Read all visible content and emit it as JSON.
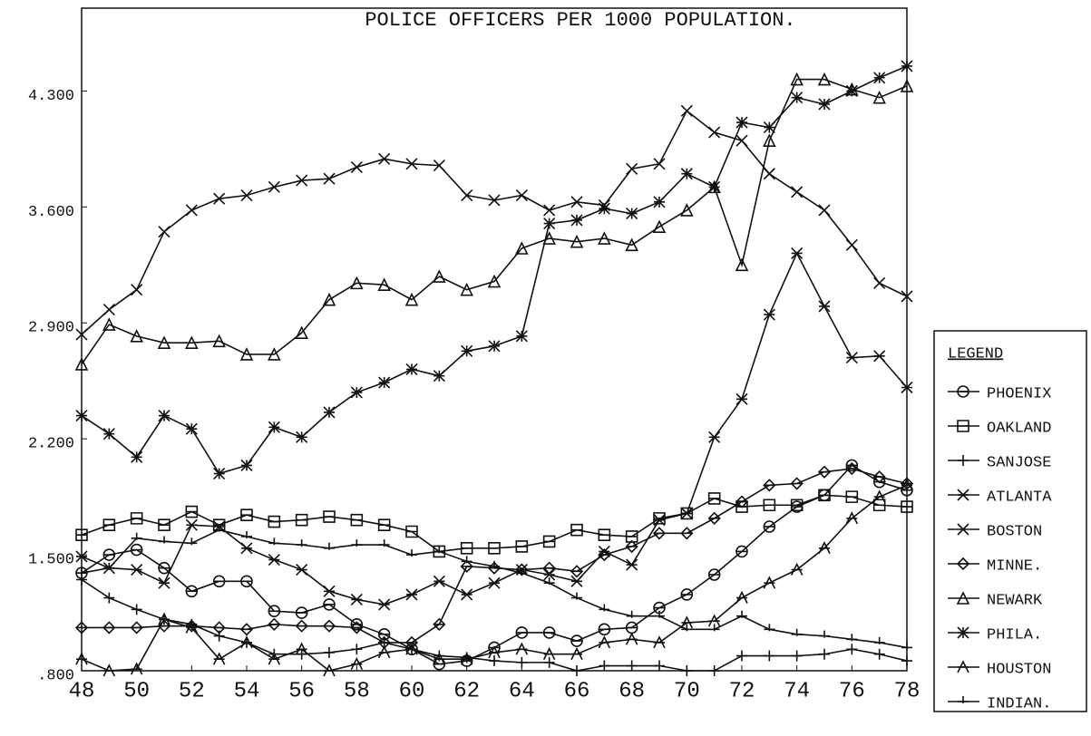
{
  "chart_data": {
    "type": "line",
    "title": "POLICE OFFICERS PER 1000 POPULATION.",
    "x": [
      48,
      49,
      50,
      51,
      52,
      53,
      54,
      55,
      56,
      57,
      58,
      59,
      60,
      61,
      62,
      63,
      64,
      65,
      66,
      67,
      68,
      69,
      70,
      71,
      72,
      73,
      74,
      75,
      76,
      77,
      78
    ],
    "xlim": [
      48,
      78
    ],
    "xticks": [
      48,
      50,
      52,
      54,
      56,
      58,
      60,
      62,
      64,
      66,
      68,
      70,
      72,
      74,
      76,
      78
    ],
    "ylim": [
      0.8,
      4.8
    ],
    "yticks": [
      {
        "value": 0.8,
        "label": ".800"
      },
      {
        "value": 1.5,
        "label": "1.500"
      },
      {
        "value": 2.2,
        "label": "2.200"
      },
      {
        "value": 2.9,
        "label": "2.900"
      },
      {
        "value": 3.6,
        "label": "3.600"
      },
      {
        "value": 4.3,
        "label": "4.300"
      }
    ],
    "legend_title": "LEGEND",
    "legend_position": "right",
    "series": [
      {
        "name": "PHOENIX",
        "color": "#111111",
        "marker": "circle",
        "values": [
          1.39,
          1.5,
          1.53,
          1.42,
          1.28,
          1.34,
          1.34,
          1.16,
          1.15,
          1.2,
          1.08,
          1.02,
          0.93,
          0.84,
          0.86,
          0.94,
          1.03,
          1.03,
          0.98,
          1.05,
          1.06,
          1.18,
          1.26,
          1.38,
          1.52,
          1.67,
          1.79,
          1.86,
          2.04,
          1.94,
          1.89
        ]
      },
      {
        "name": "OAKLAND",
        "color": "#111111",
        "marker": "square",
        "values": [
          1.62,
          1.68,
          1.72,
          1.68,
          1.76,
          1.68,
          1.74,
          1.7,
          1.71,
          1.73,
          1.71,
          1.68,
          1.64,
          1.52,
          1.54,
          1.54,
          1.55,
          1.58,
          1.65,
          1.62,
          1.61,
          1.72,
          1.75,
          1.84,
          1.79,
          1.8,
          1.8,
          1.86,
          1.85,
          1.8,
          1.79
        ]
      },
      {
        "name": "SANJOSE",
        "color": "#111111",
        "marker": "plus",
        "values": [
          1.35,
          1.24,
          1.17,
          1.11,
          1.08,
          1.01,
          0.97,
          0.9,
          0.9,
          0.91,
          0.93,
          0.97,
          0.93,
          0.89,
          0.88,
          0.86,
          0.85,
          0.85,
          0.8,
          0.83,
          0.83,
          0.83,
          0.8,
          0.8,
          0.89,
          0.89,
          0.89,
          0.9,
          0.93,
          0.9,
          0.86
        ]
      },
      {
        "name": "ATLANTA",
        "color": "#111111",
        "marker": "xbar",
        "values": [
          1.49,
          1.42,
          1.41,
          1.33,
          1.68,
          1.67,
          1.54,
          1.47,
          1.41,
          1.28,
          1.23,
          1.2,
          1.26,
          1.34,
          1.26,
          1.33,
          1.41,
          1.38,
          1.34,
          1.52,
          1.44,
          1.71,
          1.75,
          2.21,
          2.44,
          2.95,
          3.32,
          3.0,
          2.69,
          2.7,
          2.51
        ]
      },
      {
        "name": "BOSTON",
        "color": "#111111",
        "marker": "x",
        "values": [
          2.83,
          2.98,
          3.1,
          3.45,
          3.58,
          3.65,
          3.67,
          3.72,
          3.76,
          3.77,
          3.84,
          3.89,
          3.86,
          3.85,
          3.67,
          3.64,
          3.67,
          3.58,
          3.63,
          3.61,
          3.83,
          3.86,
          4.18,
          4.05,
          4.0,
          3.8,
          3.69,
          3.58,
          3.37,
          3.14,
          3.06
        ]
      },
      {
        "name": "MINNE.",
        "color": "#111111",
        "marker": "diamond",
        "values": [
          1.06,
          1.06,
          1.06,
          1.07,
          1.07,
          1.06,
          1.05,
          1.08,
          1.07,
          1.07,
          1.06,
          0.97,
          0.97,
          1.08,
          1.43,
          1.42,
          1.41,
          1.42,
          1.4,
          1.5,
          1.55,
          1.63,
          1.63,
          1.72,
          1.82,
          1.92,
          1.93,
          2.0,
          2.02,
          1.97,
          1.93
        ]
      },
      {
        "name": "NEWARK",
        "color": "#111111",
        "marker": "triangle",
        "values": [
          2.65,
          2.89,
          2.82,
          2.78,
          2.78,
          2.79,
          2.71,
          2.71,
          2.84,
          3.04,
          3.14,
          3.13,
          3.04,
          3.18,
          3.1,
          3.15,
          3.35,
          3.41,
          3.39,
          3.41,
          3.37,
          3.48,
          3.58,
          3.72,
          3.25,
          4.0,
          4.37,
          4.37,
          4.31,
          4.26,
          4.33
        ]
      },
      {
        "name": "PHILA.",
        "color": "#111111",
        "marker": "asterisk",
        "values": [
          2.34,
          2.23,
          2.09,
          2.34,
          2.26,
          1.99,
          2.04,
          2.27,
          2.21,
          2.36,
          2.48,
          2.54,
          2.62,
          2.58,
          2.73,
          2.76,
          2.82,
          3.5,
          3.52,
          3.59,
          3.56,
          3.63,
          3.8,
          3.72,
          4.11,
          4.08,
          4.26,
          4.22,
          4.3,
          4.38,
          4.45
        ]
      },
      {
        "name": "HOUSTON",
        "color": "#111111",
        "marker": "star",
        "values": [
          0.87,
          0.8,
          0.81,
          1.11,
          1.06,
          0.87,
          0.97,
          0.87,
          0.93,
          0.8,
          0.84,
          0.91,
          0.93,
          0.87,
          0.87,
          0.91,
          0.93,
          0.9,
          0.9,
          0.97,
          0.99,
          0.97,
          1.09,
          1.1,
          1.24,
          1.33,
          1.41,
          1.54,
          1.72,
          1.85,
          1.92
        ]
      },
      {
        "name": "INDIAN.",
        "color": "#111111",
        "marker": "tick",
        "values": [
          1.39,
          1.42,
          1.6,
          1.58,
          1.57,
          1.65,
          1.61,
          1.57,
          1.56,
          1.54,
          1.56,
          1.56,
          1.5,
          1.52,
          1.46,
          1.43,
          1.39,
          1.33,
          1.24,
          1.17,
          1.13,
          1.13,
          1.05,
          1.05,
          1.13,
          1.05,
          1.02,
          1.01,
          0.99,
          0.97,
          0.94
        ]
      }
    ]
  }
}
